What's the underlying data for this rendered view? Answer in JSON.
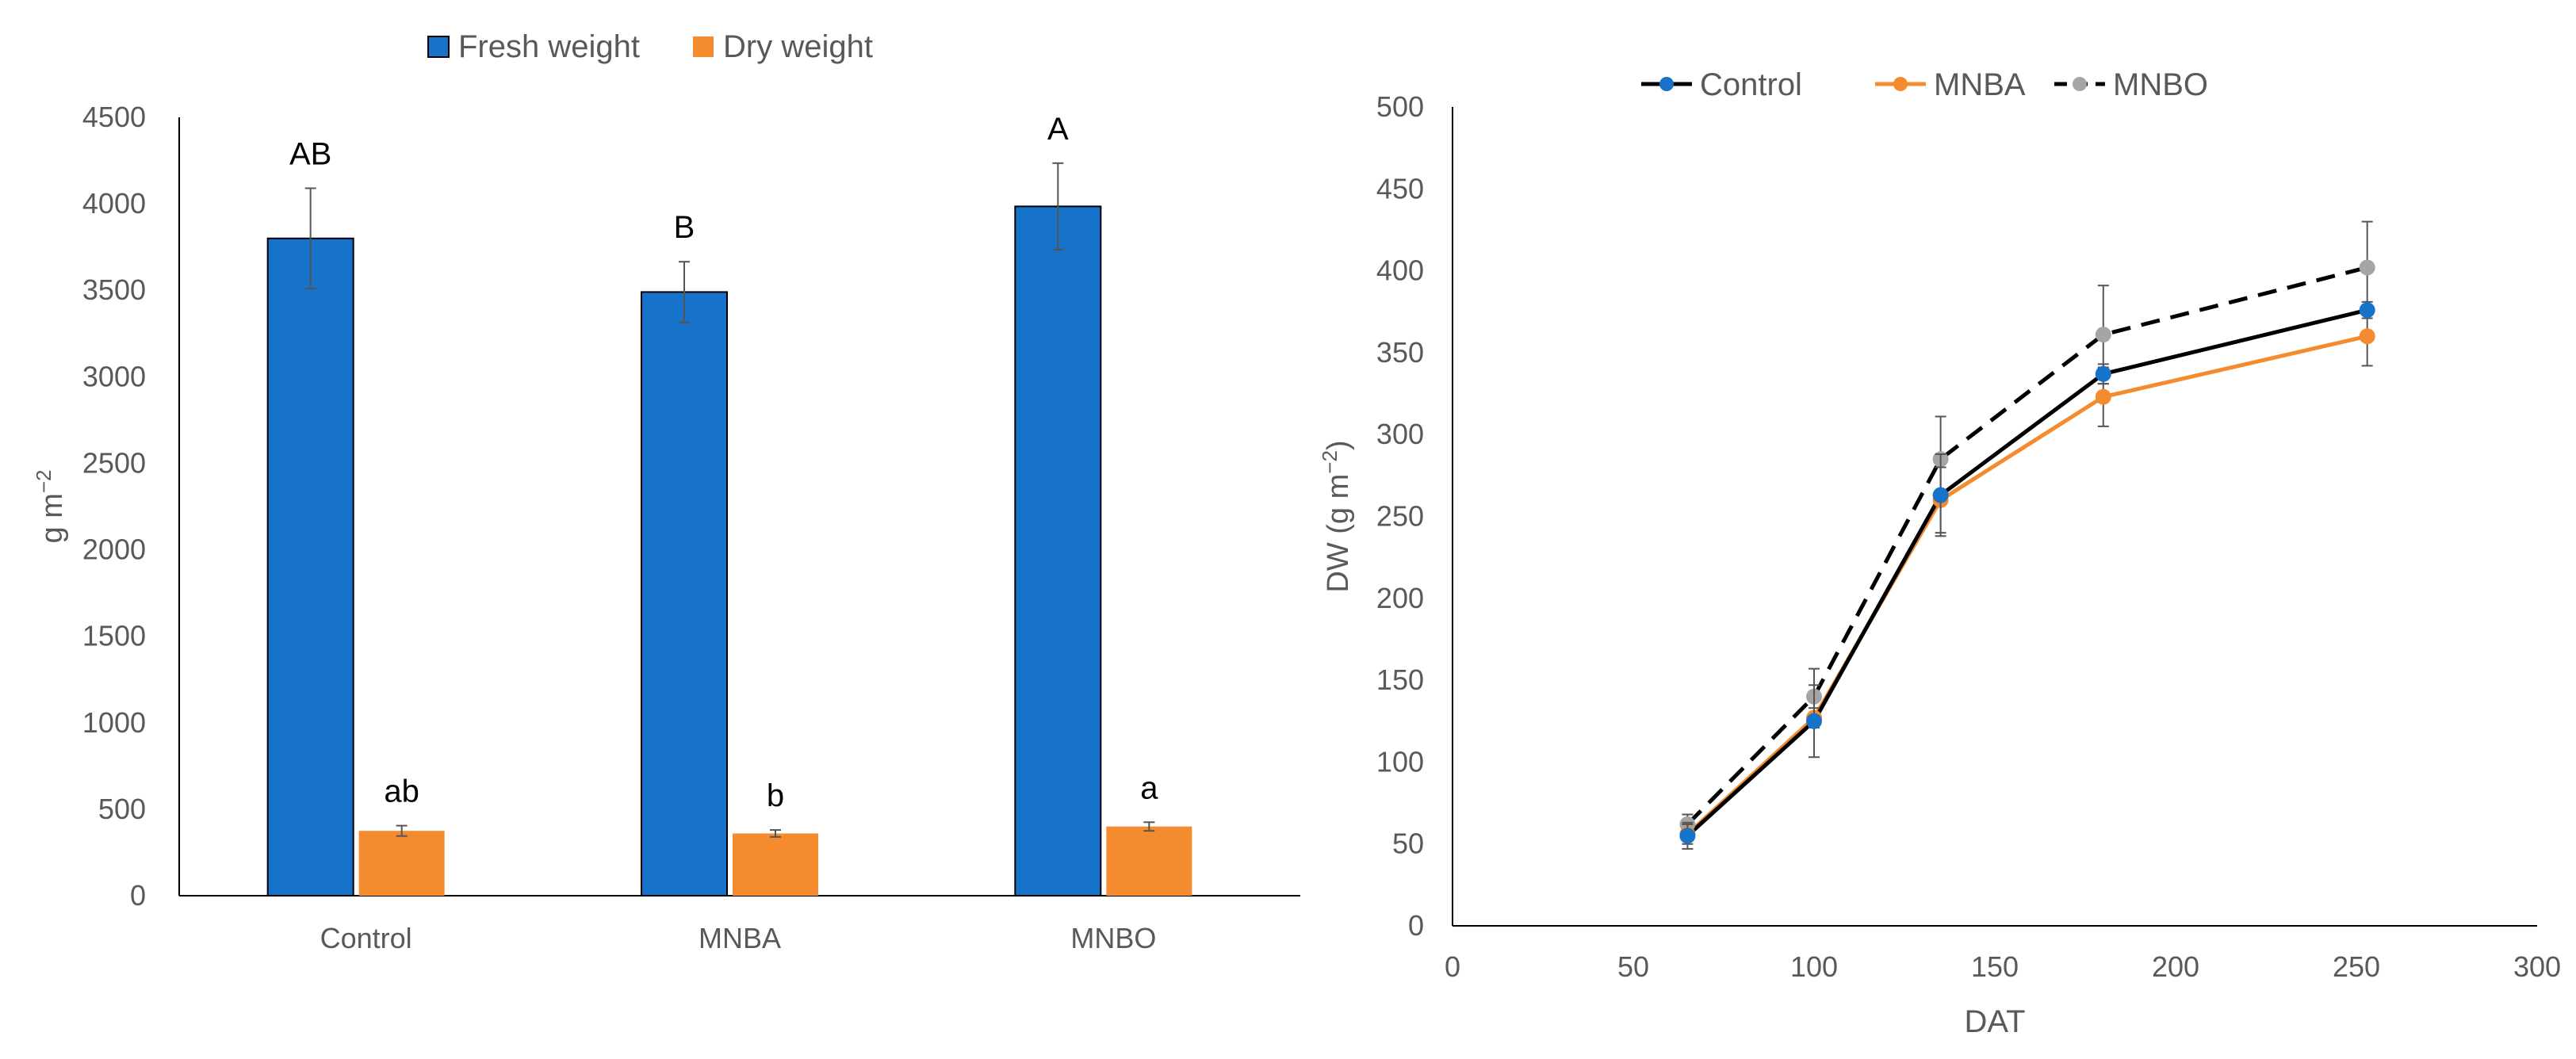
{
  "chart_data": [
    {
      "type": "bar",
      "ylabel": "g m",
      "ylabel_superscript": "−2",
      "ylim": [
        0,
        4500
      ],
      "yticks": [
        0,
        500,
        1000,
        1500,
        2000,
        2500,
        3000,
        3500,
        4000,
        4500
      ],
      "grid": false,
      "legend_position": "top",
      "categories": [
        "Control",
        "MNBA",
        "MNBO"
      ],
      "series": [
        {
          "name": "Fresh weight",
          "color": "#1772CA",
          "values": [
            3800,
            3490,
            3985
          ],
          "errors": [
            290,
            175,
            250
          ],
          "letters": [
            "AB",
            "B",
            "A"
          ]
        },
        {
          "name": "Dry weight",
          "color": "#F58B2F",
          "values": [
            375,
            360,
            400
          ],
          "errors": [
            30,
            20,
            25
          ],
          "letters": [
            "ab",
            "b",
            "a"
          ]
        }
      ]
    },
    {
      "type": "line",
      "xlabel": "DAT",
      "ylabel": "DW (g m",
      "ylabel_superscript": "−2",
      "ylabel_suffix": ")",
      "xlim": [
        0,
        300
      ],
      "ylim": [
        0,
        500
      ],
      "xticks": [
        0,
        50,
        100,
        150,
        200,
        250,
        300
      ],
      "yticks": [
        0,
        50,
        100,
        150,
        200,
        250,
        300,
        350,
        400,
        450,
        500
      ],
      "grid": false,
      "legend_position": "top",
      "x": [
        65,
        100,
        135,
        180,
        253
      ],
      "series": [
        {
          "name": "Control",
          "color": "#1772CA",
          "line_color": "#000000",
          "dash": false,
          "values": [
            55,
            125,
            263,
            337,
            376
          ],
          "errors": [
            8,
            22,
            25,
            6,
            5
          ]
        },
        {
          "name": "MNBA",
          "color": "#F58B2F",
          "line_color": "#F58B2F",
          "dash": false,
          "values": [
            56,
            127,
            260,
            323,
            360
          ],
          "errors": [
            6,
            6,
            20,
            18,
            18
          ]
        },
        {
          "name": "MNBO",
          "color": "#A5A5A5",
          "line_color": "#000000",
          "dash": true,
          "values": [
            62,
            140,
            285,
            361,
            402
          ],
          "errors": [
            6,
            17,
            26,
            30,
            28
          ]
        }
      ]
    }
  ]
}
